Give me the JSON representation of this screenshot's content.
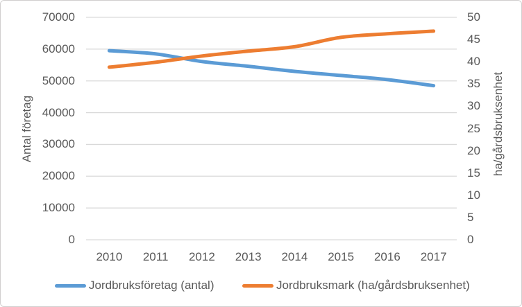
{
  "chart_data": {
    "type": "line",
    "title": "",
    "categories": [
      "2010",
      "2011",
      "2012",
      "2013",
      "2014",
      "2015",
      "2016",
      "2017"
    ],
    "series": [
      {
        "name": "Jordbruksföretag (antal)",
        "axis": "left",
        "color": "#5B9BD5",
        "values": [
          59500,
          58500,
          56100,
          54600,
          53000,
          51700,
          50400,
          48500
        ]
      },
      {
        "name": "Jordbruksmark (ha/gårdsbruksenhet)",
        "axis": "right",
        "color": "#ED7D31",
        "values": [
          38.8,
          39.9,
          41.3,
          42.4,
          43.4,
          45.5,
          46.3,
          46.9
        ]
      }
    ],
    "left_axis": {
      "title": "Antal företag",
      "min": 0,
      "max": 70000,
      "step": 10000
    },
    "right_axis": {
      "title": "ha/gårdsbruksenhet",
      "min": 0,
      "max": 50,
      "step": 5
    },
    "grid": true,
    "smoothed": true,
    "legend_position": "bottom",
    "colors": {
      "gridline": "#D9D9D9",
      "text": "#595959",
      "series_blue": "#5B9BD5",
      "series_orange": "#ED7D31",
      "border": "#D0CECE"
    }
  }
}
